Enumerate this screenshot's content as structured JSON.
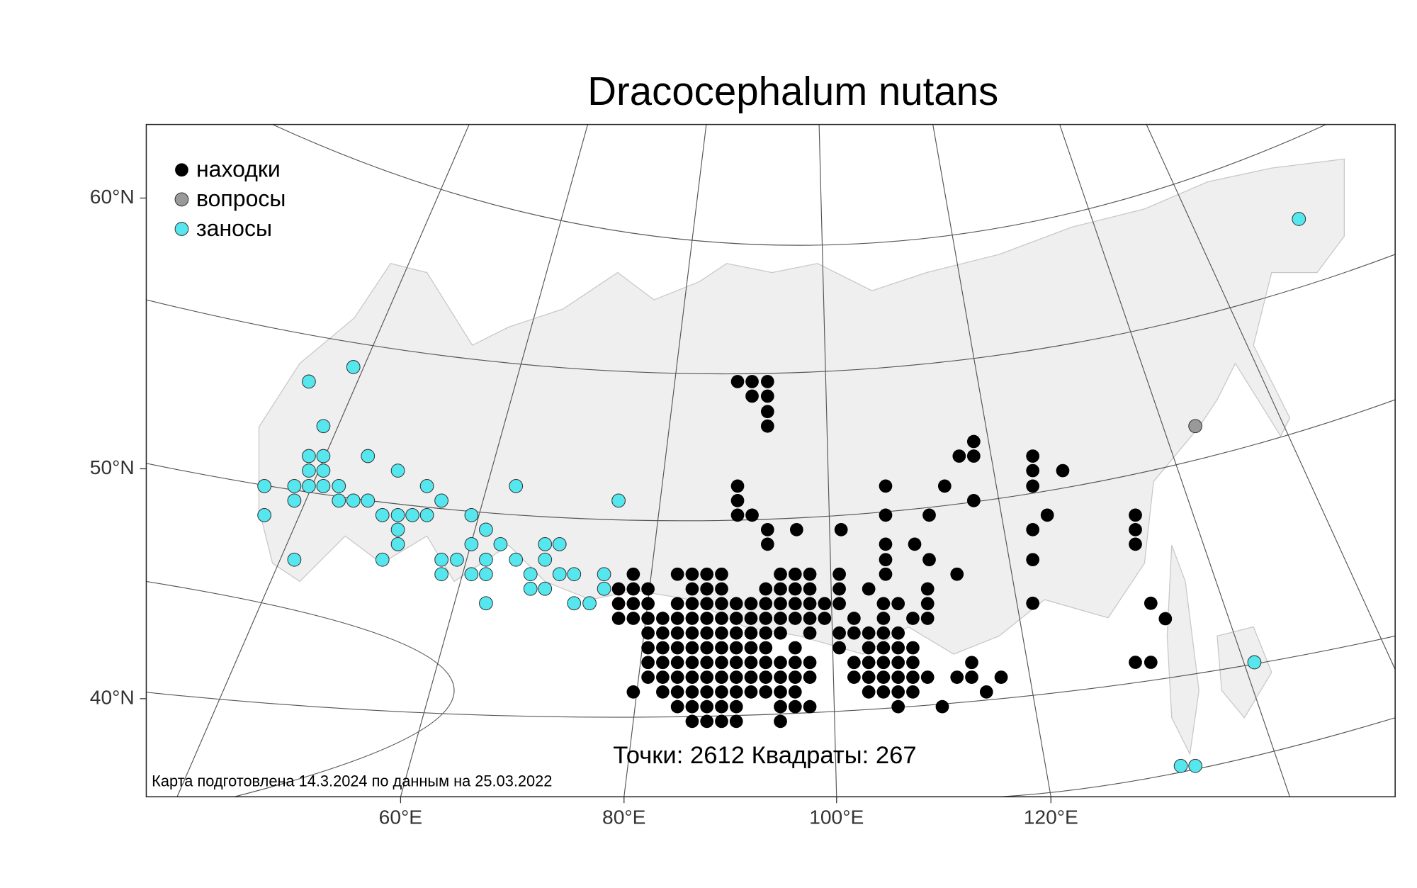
{
  "title": "Dracocephalum nutans",
  "legend": [
    {
      "label": "находки",
      "color": "#000000"
    },
    {
      "label": "вопросы",
      "color": "#999999"
    },
    {
      "label": "заносы",
      "color": "#55e6ee"
    }
  ],
  "lat_labels": [
    "60°N",
    "50°N",
    "40°N"
  ],
  "lon_labels": [
    "60°E",
    "80°E",
    "100°E",
    "120°E"
  ],
  "stats": "Точки: 2612 Квадраты: 267",
  "note": "Карта подготовлена 14.3.2024 по данным на 25.03.2022"
}
